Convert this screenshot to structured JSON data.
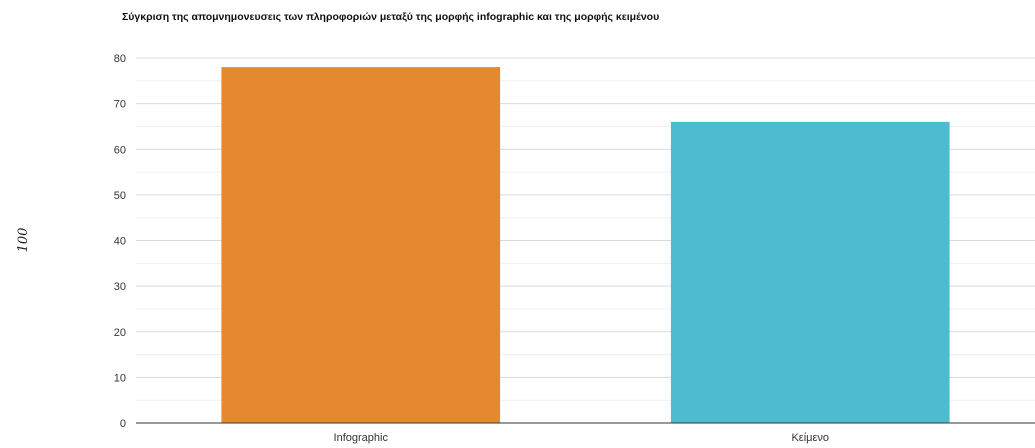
{
  "chart_data": {
    "type": "bar",
    "title": "Σύγκριση της απομνημονευσεις των πληροφοριών μεταξύ της μορφής infographic και της μορφής κειμένου",
    "xlabel": "",
    "ylabel": "100",
    "categories": [
      "Infographic",
      "Κείμενο"
    ],
    "values": [
      78,
      66
    ],
    "colors": [
      "#e5892e",
      "#4dbcd0"
    ],
    "ylim": [
      0,
      80
    ],
    "yticks": [
      0,
      10,
      20,
      30,
      40,
      50,
      60,
      70,
      80
    ],
    "grid": true,
    "legend": "none"
  }
}
